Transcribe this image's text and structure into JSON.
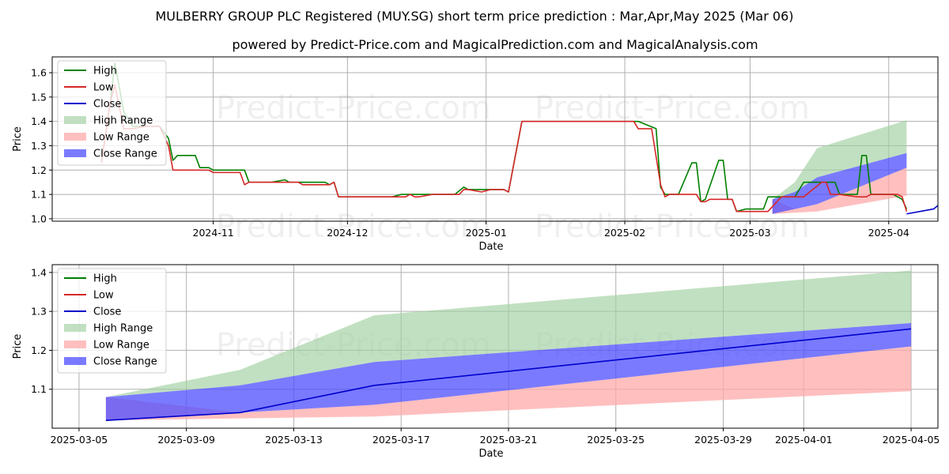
{
  "title": "MULBERRY GROUP PLC Registered (MUY.SG) short term price prediction : Mar,Apr,May 2025 (Mar 06)",
  "subtitle": "powered by Predict-Price.com and MagicalPrediction.com and MagicalAnalysis.com",
  "watermark": "Predict-Price.com",
  "colors": {
    "high": "#008000",
    "low": "#d62728",
    "close": "#0000cc",
    "high_range": "#9fd09f",
    "low_range": "#ffaaaa",
    "close_range": "#4d4dff"
  },
  "chart_data": [
    {
      "type": "line",
      "xlabel": "Date",
      "ylabel": "Price",
      "xlim": [
        "2024-09-26",
        "2025-04-12"
      ],
      "ylim": [
        0.99,
        1.665
      ],
      "yticks": [
        "1.0",
        "1.1",
        "1.2",
        "1.3",
        "1.4",
        "1.5",
        "1.6"
      ],
      "xticks": [
        "2024-11",
        "2024-12",
        "2025-01",
        "2025-02",
        "2025-03",
        "2025-04"
      ],
      "grid": true,
      "legend": "top-left",
      "legend_entries": [
        "High",
        "Low",
        "Close",
        "High Range",
        "Low Range",
        "Close Range"
      ],
      "series": [
        {
          "name": "High",
          "points": [
            [
              "2024-10-07",
              1.23
            ],
            [
              "2024-10-09",
              1.48
            ],
            [
              "2024-10-10",
              1.64
            ],
            [
              "2024-10-12",
              1.44
            ],
            [
              "2024-10-14",
              1.38
            ],
            [
              "2024-10-17",
              1.38
            ],
            [
              "2024-10-20",
              1.38
            ],
            [
              "2024-10-22",
              1.33
            ],
            [
              "2024-10-23",
              1.24
            ],
            [
              "2024-10-24",
              1.26
            ],
            [
              "2024-10-28",
              1.26
            ],
            [
              "2024-10-29",
              1.21
            ],
            [
              "2024-10-31",
              1.21
            ],
            [
              "2024-11-01",
              1.2
            ],
            [
              "2024-11-05",
              1.2
            ],
            [
              "2024-11-08",
              1.2
            ],
            [
              "2024-11-09",
              1.15
            ],
            [
              "2024-11-14",
              1.15
            ],
            [
              "2024-11-17",
              1.16
            ],
            [
              "2024-11-18",
              1.15
            ],
            [
              "2024-11-26",
              1.15
            ],
            [
              "2024-11-27",
              1.14
            ],
            [
              "2024-11-28",
              1.15
            ],
            [
              "2024-11-29",
              1.09
            ],
            [
              "2024-12-08",
              1.09
            ],
            [
              "2024-12-11",
              1.09
            ],
            [
              "2024-12-13",
              1.1
            ],
            [
              "2024-12-19",
              1.1
            ],
            [
              "2024-12-25",
              1.1
            ],
            [
              "2024-12-27",
              1.13
            ],
            [
              "2024-12-28",
              1.12
            ],
            [
              "2025-01-03",
              1.12
            ],
            [
              "2025-01-05",
              1.12
            ],
            [
              "2025-01-06",
              1.11
            ],
            [
              "2025-01-09",
              1.4
            ],
            [
              "2025-02-01",
              1.4
            ],
            [
              "2025-02-04",
              1.4
            ],
            [
              "2025-02-08",
              1.37
            ],
            [
              "2025-02-09",
              1.13
            ],
            [
              "2025-02-10",
              1.1
            ],
            [
              "2025-02-13",
              1.1
            ],
            [
              "2025-02-16",
              1.23
            ],
            [
              "2025-02-17",
              1.23
            ],
            [
              "2025-02-18",
              1.07
            ],
            [
              "2025-02-19",
              1.08
            ],
            [
              "2025-02-22",
              1.24
            ],
            [
              "2025-02-23",
              1.24
            ],
            [
              "2025-02-24",
              1.08
            ],
            [
              "2025-02-25",
              1.08
            ],
            [
              "2025-02-26",
              1.03
            ],
            [
              "2025-02-28",
              1.04
            ],
            [
              "2025-03-02",
              1.04
            ],
            [
              "2025-03-04",
              1.04
            ],
            [
              "2025-03-05",
              1.09
            ],
            [
              "2025-03-08",
              1.09
            ],
            [
              "2025-03-11",
              1.09
            ],
            [
              "2025-03-13",
              1.15
            ],
            [
              "2025-03-17",
              1.15
            ],
            [
              "2025-03-20",
              1.15
            ],
            [
              "2025-03-21",
              1.1
            ],
            [
              "2025-03-25",
              1.1
            ],
            [
              "2025-03-26",
              1.26
            ],
            [
              "2025-03-27",
              1.26
            ],
            [
              "2025-03-28",
              1.1
            ],
            [
              "2025-04-01",
              1.1
            ],
            [
              "2025-04-02",
              1.1
            ],
            [
              "2025-04-04",
              1.08
            ],
            [
              "2025-04-05",
              1.04
            ]
          ]
        },
        {
          "name": "Low",
          "points": [
            [
              "2024-10-07",
              1.23
            ],
            [
              "2024-10-09",
              1.48
            ],
            [
              "2024-10-10",
              1.55
            ],
            [
              "2024-10-12",
              1.37
            ],
            [
              "2024-10-14",
              1.37
            ],
            [
              "2024-10-17",
              1.38
            ],
            [
              "2024-10-20",
              1.38
            ],
            [
              "2024-10-22",
              1.3
            ],
            [
              "2024-10-23",
              1.2
            ],
            [
              "2024-10-28",
              1.2
            ],
            [
              "2024-10-31",
              1.2
            ],
            [
              "2024-11-01",
              1.19
            ],
            [
              "2024-11-05",
              1.19
            ],
            [
              "2024-11-07",
              1.19
            ],
            [
              "2024-11-08",
              1.14
            ],
            [
              "2024-11-09",
              1.15
            ],
            [
              "2024-11-17",
              1.15
            ],
            [
              "2024-11-20",
              1.15
            ],
            [
              "2024-11-21",
              1.14
            ],
            [
              "2024-11-24",
              1.14
            ],
            [
              "2024-11-26",
              1.14
            ],
            [
              "2024-11-27",
              1.14
            ],
            [
              "2024-11-28",
              1.15
            ],
            [
              "2024-11-29",
              1.09
            ],
            [
              "2024-12-08",
              1.09
            ],
            [
              "2024-12-12",
              1.09
            ],
            [
              "2024-12-14",
              1.09
            ],
            [
              "2024-12-15",
              1.1
            ],
            [
              "2024-12-16",
              1.09
            ],
            [
              "2024-12-17",
              1.09
            ],
            [
              "2024-12-20",
              1.1
            ],
            [
              "2024-12-26",
              1.1
            ],
            [
              "2024-12-27",
              1.12
            ],
            [
              "2024-12-28",
              1.12
            ],
            [
              "2024-12-31",
              1.11
            ],
            [
              "2025-01-02",
              1.12
            ],
            [
              "2025-01-05",
              1.12
            ],
            [
              "2025-01-06",
              1.11
            ],
            [
              "2025-01-09",
              1.4
            ],
            [
              "2025-02-01",
              1.4
            ],
            [
              "2025-02-03",
              1.4
            ],
            [
              "2025-02-04",
              1.37
            ],
            [
              "2025-02-07",
              1.37
            ],
            [
              "2025-02-09",
              1.14
            ],
            [
              "2025-02-10",
              1.09
            ],
            [
              "2025-02-11",
              1.1
            ],
            [
              "2025-02-16",
              1.1
            ],
            [
              "2025-02-17",
              1.1
            ],
            [
              "2025-02-18",
              1.07
            ],
            [
              "2025-02-19",
              1.07
            ],
            [
              "2025-02-20",
              1.08
            ],
            [
              "2025-02-24",
              1.08
            ],
            [
              "2025-02-25",
              1.08
            ],
            [
              "2025-02-26",
              1.03
            ],
            [
              "2025-03-04",
              1.03
            ],
            [
              "2025-03-05",
              1.03
            ],
            [
              "2025-03-08",
              1.09
            ],
            [
              "2025-03-13",
              1.09
            ],
            [
              "2025-03-17",
              1.15
            ],
            [
              "2025-03-18",
              1.15
            ],
            [
              "2025-03-19",
              1.1
            ],
            [
              "2025-03-21",
              1.1
            ],
            [
              "2025-03-25",
              1.09
            ],
            [
              "2025-03-27",
              1.09
            ],
            [
              "2025-03-28",
              1.1
            ],
            [
              "2025-04-01",
              1.1
            ],
            [
              "2025-04-03",
              1.1
            ],
            [
              "2025-04-04",
              1.09
            ],
            [
              "2025-04-05",
              1.03
            ]
          ]
        },
        {
          "name": "Close",
          "points": [
            [
              "2025-04-05",
              1.02
            ],
            [
              "2025-04-11",
              1.04
            ],
            [
              "2025-04-16",
              1.11
            ],
            [
              "2025-05-05",
              1.255
            ]
          ]
        }
      ],
      "bands": [
        {
          "name": "High Range",
          "x": [
            "2025-03-06",
            "2025-03-11",
            "2025-03-16",
            "2025-04-05"
          ],
          "upper": [
            1.08,
            1.15,
            1.29,
            1.405
          ],
          "lower": [
            1.08,
            1.11,
            1.17,
            1.27
          ]
        },
        {
          "name": "Low Range",
          "x": [
            "2025-03-06",
            "2025-03-11",
            "2025-03-16",
            "2025-04-05"
          ],
          "upper": [
            1.08,
            1.04,
            1.06,
            1.21
          ],
          "lower": [
            1.02,
            1.025,
            1.03,
            1.095
          ]
        },
        {
          "name": "Close Range",
          "x": [
            "2025-03-06",
            "2025-03-11",
            "2025-03-16",
            "2025-04-05"
          ],
          "upper": [
            1.08,
            1.11,
            1.17,
            1.27
          ],
          "lower": [
            1.02,
            1.04,
            1.06,
            1.21
          ]
        }
      ]
    },
    {
      "type": "line",
      "xlabel": "Date",
      "ylabel": "Price",
      "xlim": [
        "2025-03-04",
        "2025-04-06"
      ],
      "ylim": [
        1.0,
        1.42
      ],
      "yticks": [
        "1.1",
        "1.2",
        "1.3",
        "1.4"
      ],
      "xticks": [
        "2025-03-05",
        "2025-03-09",
        "2025-03-13",
        "2025-03-17",
        "2025-03-21",
        "2025-03-25",
        "2025-03-29",
        "2025-04-01",
        "2025-04-05"
      ],
      "grid": true,
      "legend": "top-left",
      "legend_entries": [
        "High",
        "Low",
        "Close",
        "High Range",
        "Low Range",
        "Close Range"
      ],
      "series": [
        {
          "name": "Close",
          "points": [
            [
              "2025-03-06",
              1.02
            ],
            [
              "2025-03-11",
              1.04
            ],
            [
              "2025-03-16",
              1.11
            ],
            [
              "2025-04-05",
              1.255
            ]
          ]
        }
      ],
      "bands": [
        {
          "name": "High Range",
          "x": [
            "2025-03-06",
            "2025-03-11",
            "2025-03-16",
            "2025-04-05"
          ],
          "upper": [
            1.08,
            1.15,
            1.29,
            1.405
          ],
          "lower": [
            1.08,
            1.11,
            1.17,
            1.27
          ]
        },
        {
          "name": "Low Range",
          "x": [
            "2025-03-06",
            "2025-03-11",
            "2025-03-16",
            "2025-04-05"
          ],
          "upper": [
            1.08,
            1.04,
            1.06,
            1.21
          ],
          "lower": [
            1.02,
            1.025,
            1.03,
            1.095
          ]
        },
        {
          "name": "Close Range",
          "x": [
            "2025-03-06",
            "2025-03-11",
            "2025-03-16",
            "2025-04-05"
          ],
          "upper": [
            1.08,
            1.11,
            1.17,
            1.27
          ],
          "lower": [
            1.02,
            1.04,
            1.06,
            1.21
          ]
        }
      ]
    }
  ]
}
